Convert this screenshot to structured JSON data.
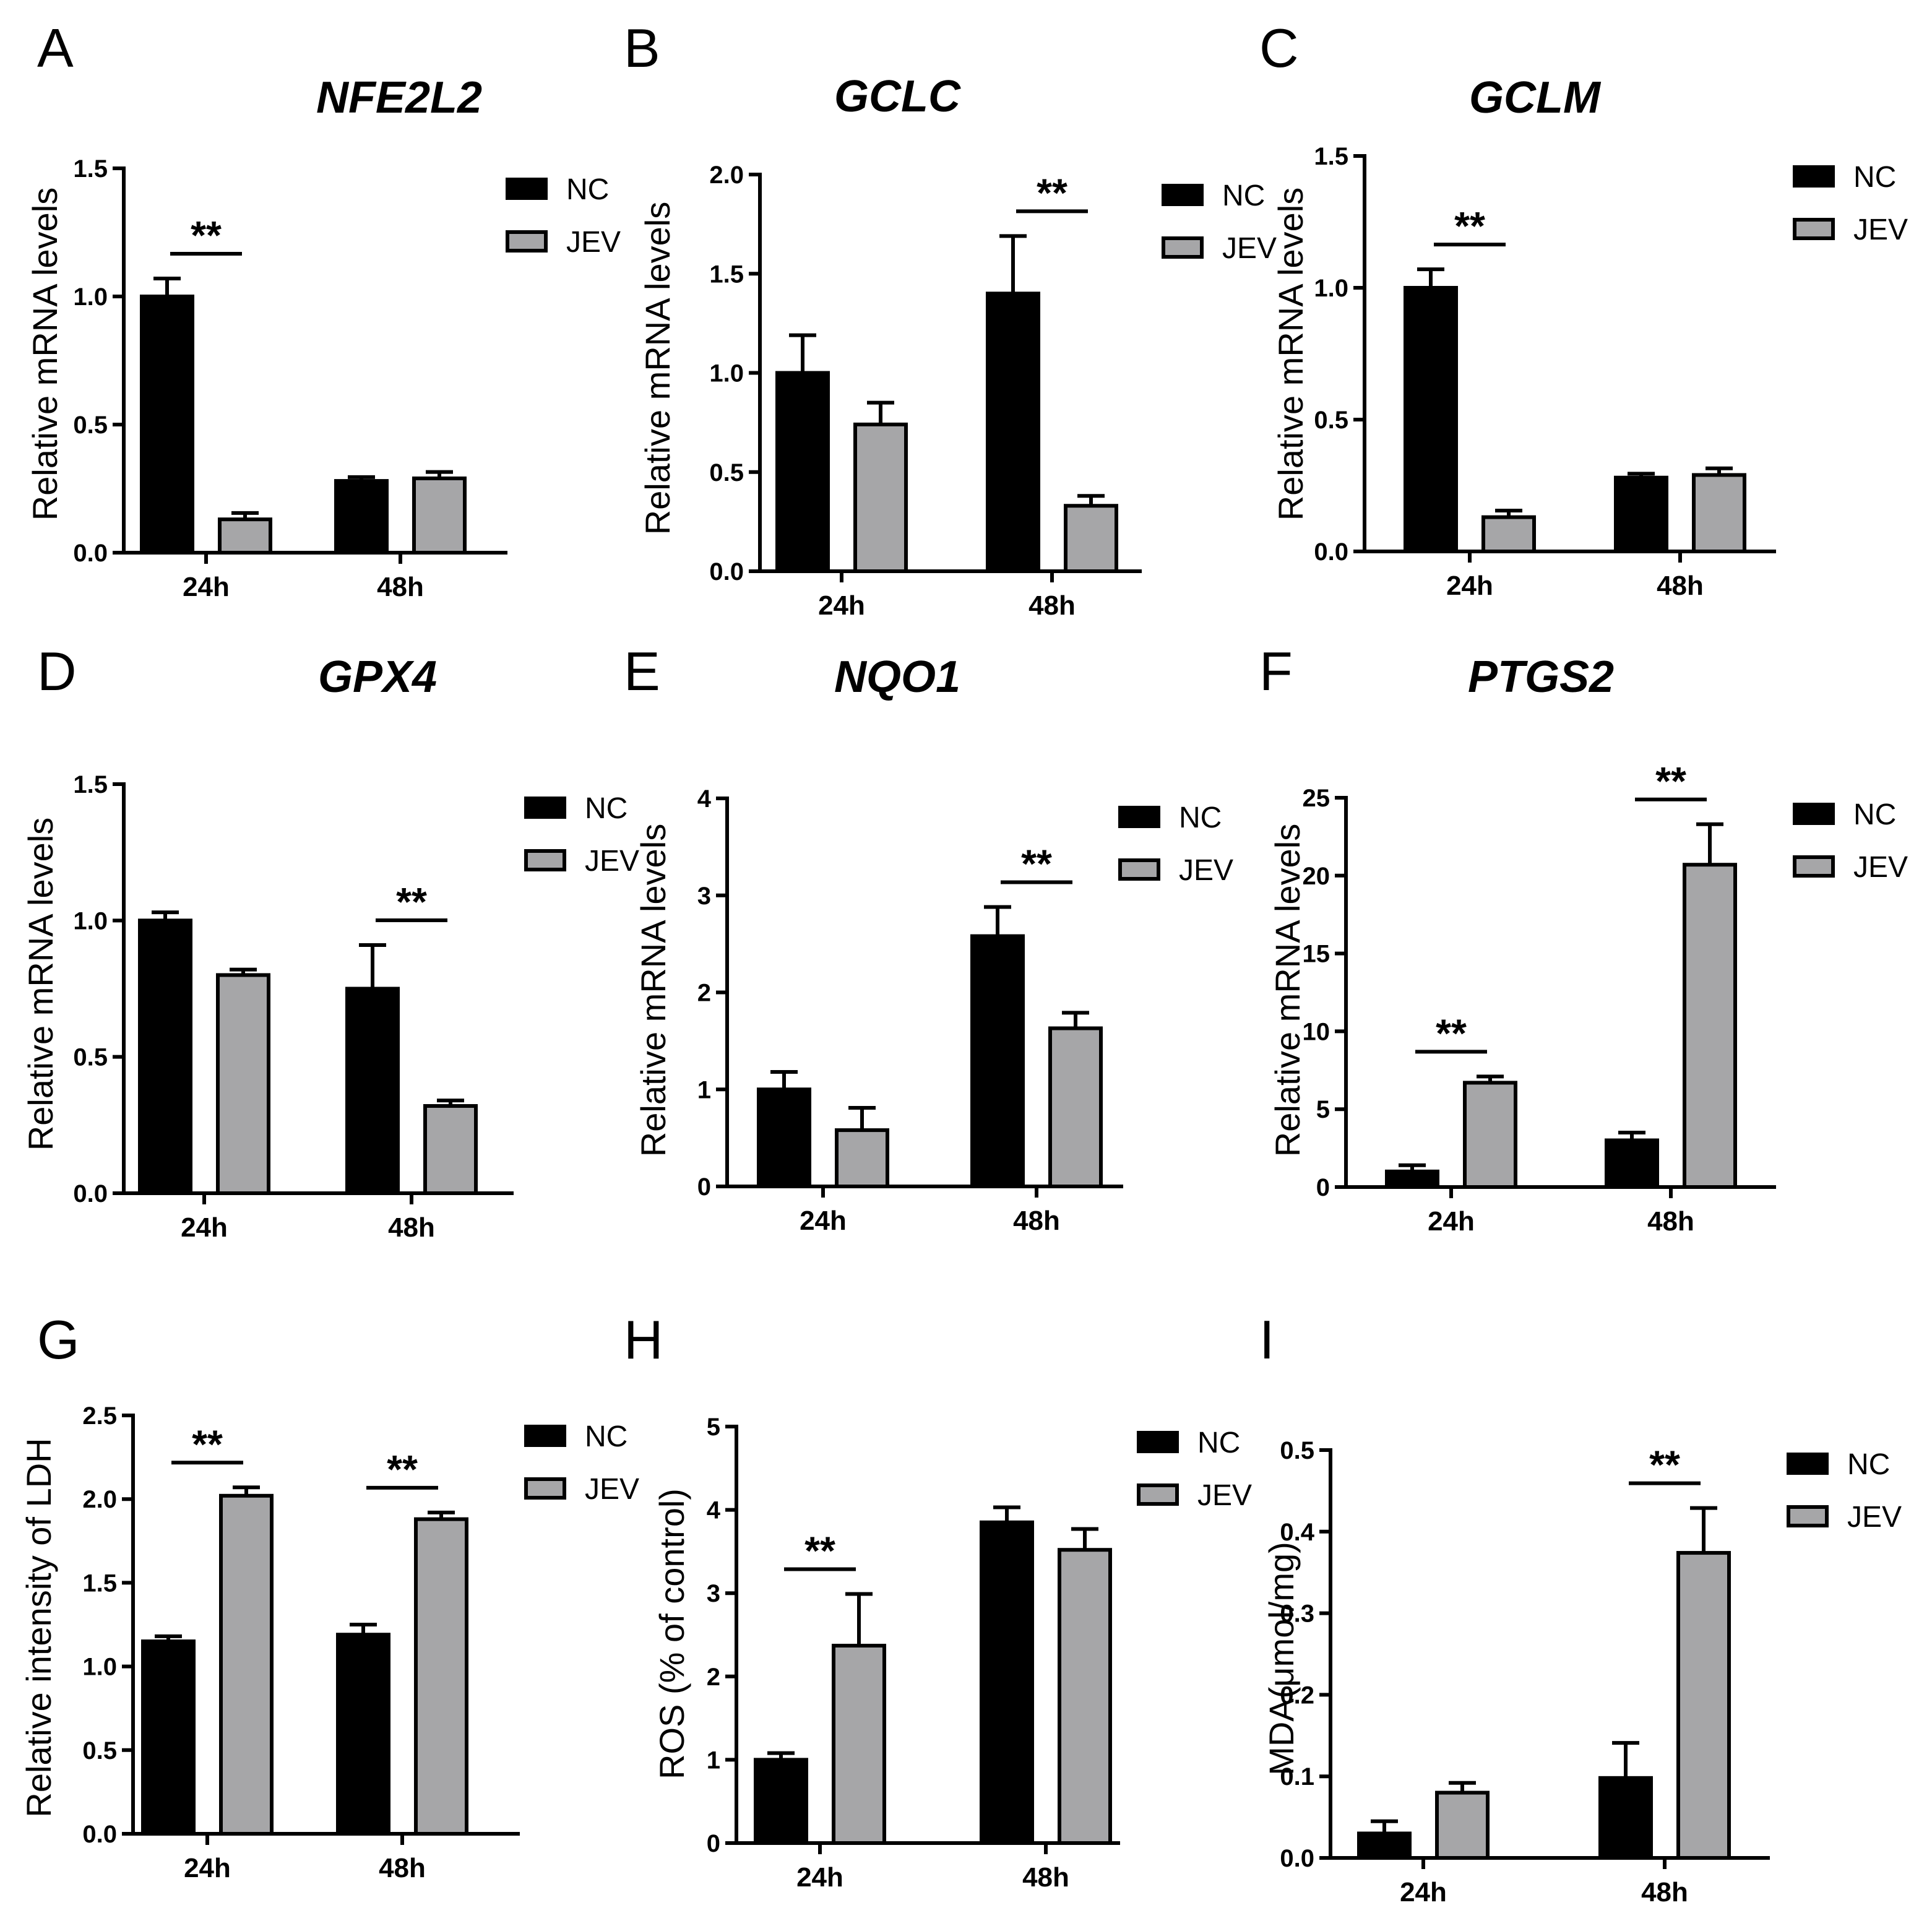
{
  "colors": {
    "nc": "#000000",
    "jev": "#a6a6a8",
    "axis": "#000000"
  },
  "chart_data": [
    {
      "panel": "A",
      "type": "bar",
      "title": "NFE2L2",
      "ylabel": "Relative mRNA levels",
      "categories": [
        "24h",
        "48h"
      ],
      "ylim": [
        0,
        1.5
      ],
      "yticks": [
        "0.0",
        "0.5",
        "1.0",
        "1.5"
      ],
      "ytick_values": [
        0,
        0.5,
        1.0,
        1.5
      ],
      "series": [
        {
          "name": "NC",
          "values": [
            1.0,
            0.28
          ],
          "errors": [
            0.07,
            0.015
          ]
        },
        {
          "name": "JEV",
          "values": [
            0.13,
            0.29
          ],
          "errors": [
            0.025,
            0.025
          ]
        }
      ],
      "significance": [
        {
          "category": 0,
          "label": "**"
        }
      ]
    },
    {
      "panel": "B",
      "type": "bar",
      "title": "GCLC",
      "ylabel": "Relative mRNA levels",
      "categories": [
        "24h",
        "48h"
      ],
      "ylim": [
        0,
        2.0
      ],
      "yticks": [
        "0.0",
        "0.5",
        "1.0",
        "1.5",
        "2.0"
      ],
      "ytick_values": [
        0,
        0.5,
        1.0,
        1.5,
        2.0
      ],
      "series": [
        {
          "name": "NC",
          "values": [
            1.0,
            1.4
          ],
          "errors": [
            0.19,
            0.29
          ]
        },
        {
          "name": "JEV",
          "values": [
            0.74,
            0.33
          ],
          "errors": [
            0.11,
            0.05
          ]
        }
      ],
      "significance": [
        {
          "category": 1,
          "label": "**"
        }
      ]
    },
    {
      "panel": "C",
      "type": "bar",
      "title": "GCLM",
      "ylabel": "Relative mRNA levels",
      "categories": [
        "24h",
        "48h"
      ],
      "ylim": [
        0,
        1.5
      ],
      "yticks": [
        "0.0",
        "0.5",
        "1.0",
        "1.5"
      ],
      "ytick_values": [
        0,
        0.5,
        1.0,
        1.5
      ],
      "series": [
        {
          "name": "NC",
          "values": [
            1.0,
            0.28
          ],
          "errors": [
            0.07,
            0.015
          ]
        },
        {
          "name": "JEV",
          "values": [
            0.13,
            0.29
          ],
          "errors": [
            0.025,
            0.025
          ]
        }
      ],
      "significance": [
        {
          "category": 0,
          "label": "**"
        }
      ]
    },
    {
      "panel": "D",
      "type": "bar",
      "title": "GPX4",
      "ylabel": "Relative mRNA levels",
      "categories": [
        "24h",
        "48h"
      ],
      "ylim": [
        0,
        1.5
      ],
      "yticks": [
        "0.0",
        "0.5",
        "1.0",
        "1.5"
      ],
      "ytick_values": [
        0,
        0.5,
        1.0,
        1.5
      ],
      "series": [
        {
          "name": "NC",
          "values": [
            1.0,
            0.75
          ],
          "errors": [
            0.03,
            0.16
          ]
        },
        {
          "name": "JEV",
          "values": [
            0.8,
            0.32
          ],
          "errors": [
            0.02,
            0.02
          ]
        }
      ],
      "significance": [
        {
          "category": 1,
          "label": "**"
        }
      ]
    },
    {
      "panel": "E",
      "type": "bar",
      "title": "NQO1",
      "ylabel": "Relative mRNA levels",
      "categories": [
        "24h",
        "48h"
      ],
      "ylim": [
        0,
        4
      ],
      "yticks": [
        "0",
        "1",
        "2",
        "3",
        "4"
      ],
      "ytick_values": [
        0,
        1,
        2,
        3,
        4
      ],
      "series": [
        {
          "name": "NC",
          "values": [
            1.0,
            2.58
          ],
          "errors": [
            0.18,
            0.3
          ]
        },
        {
          "name": "JEV",
          "values": [
            0.58,
            1.63
          ],
          "errors": [
            0.23,
            0.16
          ]
        }
      ],
      "significance": [
        {
          "category": 1,
          "label": "**"
        }
      ]
    },
    {
      "panel": "F",
      "type": "bar",
      "title": "PTGS2",
      "ylabel": "Relative mRNA levels",
      "categories": [
        "24h",
        "48h"
      ],
      "ylim": [
        0,
        25
      ],
      "yticks": [
        "0",
        "5",
        "10",
        "15",
        "20",
        "25"
      ],
      "ytick_values": [
        0,
        5,
        10,
        15,
        20,
        25
      ],
      "series": [
        {
          "name": "NC",
          "values": [
            1.0,
            3.0
          ],
          "errors": [
            0.4,
            0.5
          ]
        },
        {
          "name": "JEV",
          "values": [
            6.7,
            20.7
          ],
          "errors": [
            0.4,
            2.6
          ]
        }
      ],
      "significance": [
        {
          "category": 0,
          "label": "**"
        },
        {
          "category": 1,
          "label": "**"
        }
      ]
    },
    {
      "panel": "G",
      "type": "bar",
      "title": "",
      "ylabel": "Relative intensity of LDH",
      "categories": [
        "24h",
        "48h"
      ],
      "ylim": [
        0,
        2.5
      ],
      "yticks": [
        "0.0",
        "0.5",
        "1.0",
        "1.5",
        "2.0",
        "2.5"
      ],
      "ytick_values": [
        0,
        0.5,
        1.0,
        1.5,
        2.0,
        2.5
      ],
      "series": [
        {
          "name": "NC",
          "values": [
            1.15,
            1.19
          ],
          "errors": [
            0.03,
            0.06
          ]
        },
        {
          "name": "JEV",
          "values": [
            2.02,
            1.88
          ],
          "errors": [
            0.05,
            0.04
          ]
        }
      ],
      "significance": [
        {
          "category": 0,
          "label": "**"
        },
        {
          "category": 1,
          "label": "**"
        }
      ]
    },
    {
      "panel": "H",
      "type": "bar",
      "title": "",
      "ylabel": "ROS (% of control)",
      "categories": [
        "24h",
        "48h"
      ],
      "ylim": [
        0,
        5
      ],
      "yticks": [
        "0",
        "1",
        "2",
        "3",
        "4",
        "5"
      ],
      "ytick_values": [
        0,
        1,
        2,
        3,
        4,
        5
      ],
      "series": [
        {
          "name": "NC",
          "values": [
            1.0,
            3.85
          ],
          "errors": [
            0.08,
            0.18
          ]
        },
        {
          "name": "JEV",
          "values": [
            2.37,
            3.52
          ],
          "errors": [
            0.62,
            0.25
          ]
        }
      ],
      "significance": [
        {
          "category": 0,
          "label": "**"
        }
      ]
    },
    {
      "panel": "I",
      "type": "bar",
      "title": "",
      "ylabel": "MDA(μmol/mg)",
      "categories": [
        "24h",
        "48h"
      ],
      "ylim": [
        0,
        0.5
      ],
      "yticks": [
        "0.0",
        "0.1",
        "0.2",
        "0.3",
        "0.4",
        "0.5"
      ],
      "ytick_values": [
        0,
        0.1,
        0.2,
        0.3,
        0.4,
        0.5
      ],
      "series": [
        {
          "name": "NC",
          "values": [
            0.03,
            0.098
          ],
          "errors": [
            0.015,
            0.043
          ]
        },
        {
          "name": "JEV",
          "values": [
            0.08,
            0.374
          ],
          "errors": [
            0.012,
            0.055
          ]
        }
      ],
      "significance": [
        {
          "category": 1,
          "label": "**"
        }
      ]
    }
  ]
}
